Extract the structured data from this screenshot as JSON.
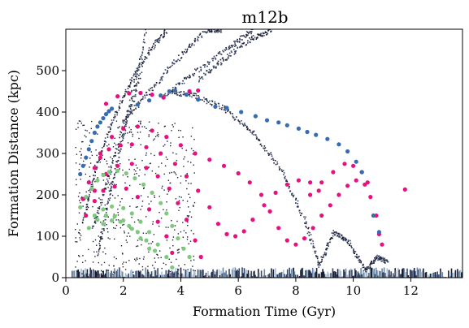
{
  "chart_data": {
    "type": "scatter",
    "title": "m12b",
    "xlabel": "Formation Time (Gyr)",
    "ylabel": "Formation Distance (kpc)",
    "xlim": [
      0,
      13.8
    ],
    "ylim": [
      0,
      600
    ],
    "xticks": [
      0,
      2,
      4,
      6,
      8,
      10,
      12
    ],
    "yticks": [
      0,
      100,
      200,
      300,
      400,
      500
    ],
    "grid": false,
    "legend": "none",
    "background_density": {
      "colormap": [
        "#1a1d33",
        "#3a4868",
        "#6b86a6",
        "#a9c0d4"
      ],
      "streams": [
        {
          "x": [
            0.6,
            1.0,
            1.6,
            2.2,
            2.9,
            3.5
          ],
          "y": [
            140,
            260,
            380,
            470,
            550,
            600
          ]
        },
        {
          "x": [
            0.9,
            1.5,
            2.2,
            2.8
          ],
          "y": [
            120,
            250,
            420,
            600
          ]
        },
        {
          "x": [
            1.1,
            1.5,
            2.0,
            2.6
          ],
          "y": [
            60,
            200,
            350,
            500
          ]
        },
        {
          "x": [
            2.0,
            3.0,
            4.0,
            4.9,
            5.4
          ],
          "y": [
            380,
            460,
            540,
            600,
            600
          ]
        },
        {
          "x": [
            3.4,
            4.5,
            5.7,
            6.5
          ],
          "y": [
            440,
            500,
            560,
            600
          ]
        },
        {
          "x": [
            4.6,
            5.5,
            6.5,
            7.2
          ],
          "y": [
            480,
            530,
            580,
            600
          ]
        },
        {
          "x": [
            3.6,
            4.5,
            5.5,
            6.5,
            7.5,
            8.3,
            8.8
          ],
          "y": [
            450,
            440,
            410,
            350,
            260,
            140,
            30
          ]
        },
        {
          "x": [
            8.8,
            9.3,
            9.8,
            10.4
          ],
          "y": [
            30,
            110,
            90,
            20
          ]
        },
        {
          "x": [
            10.4,
            10.8,
            11.2
          ],
          "y": [
            20,
            50,
            40
          ]
        }
      ],
      "floor_band": {
        "x": [
          0.2,
          13.8
        ],
        "y": [
          0,
          25
        ]
      }
    },
    "series": [
      {
        "color": "#e6117f",
        "points": [
          [
            0.6,
            190
          ],
          [
            0.8,
            230
          ],
          [
            1.0,
            265
          ],
          [
            1.2,
            290
          ],
          [
            1.5,
            310
          ],
          [
            1.9,
            320
          ],
          [
            2.3,
            322
          ],
          [
            2.8,
            315
          ],
          [
            3.3,
            300
          ],
          [
            3.8,
            275
          ],
          [
            4.2,
            245
          ],
          [
            4.6,
            210
          ],
          [
            5.0,
            170
          ],
          [
            5.3,
            130
          ],
          [
            5.6,
            105
          ],
          [
            5.9,
            100
          ],
          [
            6.2,
            112
          ],
          [
            6.5,
            140
          ],
          [
            6.9,
            175
          ],
          [
            7.3,
            205
          ],
          [
            7.7,
            225
          ],
          [
            8.1,
            235
          ],
          [
            8.5,
            230
          ],
          [
            8.8,
            210
          ],
          [
            1.4,
            420
          ],
          [
            1.8,
            438
          ],
          [
            2.2,
            445
          ],
          [
            2.6,
            446
          ],
          [
            3.0,
            442
          ],
          [
            3.4,
            435
          ],
          [
            4.3,
            450
          ],
          [
            4.6,
            452
          ],
          [
            1.2,
            300
          ],
          [
            1.6,
            340
          ],
          [
            2.0,
            360
          ],
          [
            2.5,
            365
          ],
          [
            3.0,
            355
          ],
          [
            3.5,
            340
          ],
          [
            4.0,
            320
          ],
          [
            4.5,
            300
          ],
          [
            5.0,
            285
          ],
          [
            5.5,
            270
          ],
          [
            6.0,
            252
          ],
          [
            6.4,
            230
          ],
          [
            6.8,
            200
          ],
          [
            7.1,
            160
          ],
          [
            7.4,
            120
          ],
          [
            7.7,
            90
          ],
          [
            8.0,
            80
          ],
          [
            8.3,
            95
          ],
          [
            8.6,
            120
          ],
          [
            8.9,
            150
          ],
          [
            9.2,
            175
          ],
          [
            9.5,
            200
          ],
          [
            9.8,
            222
          ],
          [
            10.1,
            235
          ],
          [
            10.4,
            225
          ],
          [
            10.6,
            195
          ],
          [
            10.8,
            150
          ],
          [
            10.9,
            105
          ],
          [
            11.0,
            80
          ],
          [
            1.0,
            210
          ],
          [
            1.4,
            250
          ],
          [
            1.8,
            270
          ],
          [
            2.3,
            275
          ],
          [
            2.8,
            265
          ],
          [
            3.2,
            245
          ],
          [
            3.6,
            215
          ],
          [
            3.9,
            180
          ],
          [
            4.2,
            140
          ],
          [
            4.5,
            90
          ],
          [
            4.7,
            50
          ],
          [
            0.7,
            150
          ],
          [
            1.0,
            185
          ],
          [
            1.3,
            210
          ],
          [
            1.7,
            220
          ],
          [
            2.1,
            215
          ],
          [
            2.5,
            195
          ],
          [
            2.9,
            165
          ],
          [
            3.2,
            135
          ],
          [
            3.5,
            100
          ],
          [
            3.7,
            60
          ],
          [
            8.5,
            200
          ],
          [
            8.9,
            230
          ],
          [
            9.3,
            255
          ],
          [
            9.7,
            275
          ],
          [
            10.0,
            270
          ],
          [
            10.3,
            255
          ],
          [
            10.5,
            230
          ],
          [
            11.8,
            213
          ]
        ]
      },
      {
        "color": "#386cb0",
        "points": [
          [
            0.5,
            250
          ],
          [
            0.6,
            270
          ],
          [
            0.7,
            290
          ],
          [
            0.8,
            310
          ],
          [
            0.9,
            330
          ],
          [
            1.0,
            350
          ],
          [
            1.1,
            365
          ],
          [
            1.2,
            375
          ],
          [
            1.3,
            385
          ],
          [
            1.4,
            395
          ],
          [
            1.5,
            402
          ],
          [
            1.6,
            408
          ],
          [
            2.5,
            418
          ],
          [
            2.9,
            428
          ],
          [
            3.3,
            440
          ],
          [
            3.6,
            450
          ],
          [
            3.8,
            452
          ],
          [
            4.2,
            442
          ],
          [
            4.6,
            430
          ],
          [
            5.2,
            413
          ],
          [
            5.6,
            410
          ],
          [
            6.1,
            400
          ],
          [
            6.6,
            390
          ],
          [
            7.0,
            380
          ],
          [
            7.4,
            375
          ],
          [
            7.7,
            368
          ],
          [
            8.1,
            360
          ],
          [
            8.4,
            352
          ],
          [
            8.7,
            345
          ],
          [
            9.1,
            335
          ],
          [
            9.5,
            322
          ],
          [
            9.8,
            305
          ],
          [
            10.1,
            280
          ],
          [
            10.3,
            255
          ],
          [
            10.7,
            150
          ],
          [
            10.9,
            110
          ]
        ]
      },
      {
        "color": "#7fc97f",
        "points": [
          [
            0.5,
            170
          ],
          [
            0.7,
            195
          ],
          [
            0.9,
            215
          ],
          [
            1.1,
            235
          ],
          [
            1.3,
            248
          ],
          [
            1.5,
            255
          ],
          [
            1.8,
            258
          ],
          [
            2.1,
            252
          ],
          [
            2.4,
            240
          ],
          [
            2.7,
            225
          ],
          [
            3.0,
            205
          ],
          [
            3.3,
            180
          ],
          [
            3.5,
            155
          ],
          [
            3.7,
            125
          ],
          [
            3.9,
            95
          ],
          [
            4.1,
            70
          ],
          [
            4.3,
            50
          ],
          [
            1.0,
            150
          ],
          [
            1.3,
            165
          ],
          [
            1.6,
            172
          ],
          [
            2.0,
            168
          ],
          [
            2.3,
            155
          ],
          [
            2.6,
            135
          ],
          [
            2.9,
            110
          ],
          [
            3.2,
            80
          ],
          [
            3.5,
            50
          ],
          [
            3.7,
            25
          ],
          [
            0.8,
            120
          ],
          [
            1.1,
            140
          ],
          [
            1.4,
            150
          ],
          [
            1.7,
            148
          ],
          [
            2.0,
            138
          ],
          [
            2.3,
            118
          ],
          [
            2.6,
            95
          ],
          [
            2.9,
            70
          ],
          [
            1.3,
            130
          ],
          [
            1.6,
            138
          ],
          [
            1.9,
            135
          ],
          [
            2.2,
            125
          ],
          [
            2.5,
            110
          ],
          [
            2.8,
            90
          ],
          [
            3.1,
            65
          ]
        ]
      }
    ]
  }
}
